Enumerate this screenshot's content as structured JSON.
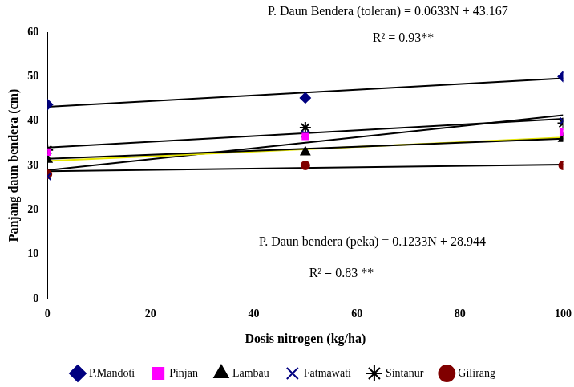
{
  "chart_data": {
    "type": "scatter",
    "x_label": "Dosis nitrogen (kg/ha)",
    "y_label": "Panjang daun bendera (cm)",
    "xlim": [
      0,
      100
    ],
    "xticks": [
      0,
      20,
      40,
      60,
      80,
      100
    ],
    "ylim": [
      0,
      60
    ],
    "yticks": [
      0,
      10,
      20,
      30,
      40,
      50,
      60
    ],
    "grid": false,
    "legend": "bottom",
    "x": [
      0,
      50,
      100
    ],
    "series": [
      {
        "name": "P.Mandoti",
        "color": "#000080",
        "marker": "diamond",
        "values": [
          43.7,
          45.2,
          50.0
        ],
        "trend": {
          "color": "#000000",
          "values": [
            43.2,
            49.6
          ]
        }
      },
      {
        "name": "Pinjan",
        "color": "#ff00ff",
        "marker": "square",
        "values": [
          33.0,
          36.5,
          37.5
        ],
        "trend": {
          "color": "#000000",
          "values": [
            31.5,
            36.0
          ]
        }
      },
      {
        "name": "Lambau",
        "color": "#000000",
        "marker": "triangle",
        "values": [
          31.3,
          33.0,
          36.0
        ],
        "trend": {
          "color": "#e6e600",
          "values": [
            31.0,
            36.3
          ]
        }
      },
      {
        "name": "Fatmawati",
        "color": "#000080",
        "marker": "x",
        "values": [
          27.5,
          37.0,
          40.0
        ],
        "trend": {
          "color": "#000000",
          "values": [
            28.9,
            41.3
          ]
        }
      },
      {
        "name": "Sintanur",
        "color": "#000000",
        "marker": "asterisk",
        "values": [
          33.5,
          38.5,
          39.5
        ],
        "trend": {
          "color": "#000000",
          "values": [
            34.0,
            40.5
          ]
        }
      },
      {
        "name": "Gilirang",
        "color": "#800000",
        "marker": "circle",
        "values": [
          28.0,
          30.0,
          30.0
        ],
        "trend": {
          "color": "#000000",
          "values": [
            28.7,
            30.2
          ]
        }
      }
    ],
    "annotations": [
      "P. Daun Bendera (toleran) = 0.0633N + 43.167",
      "R² = 0.93**",
      "P. Daun bendera (peka) = 0.1233N + 28.944",
      "R² = 0.83 **"
    ]
  }
}
